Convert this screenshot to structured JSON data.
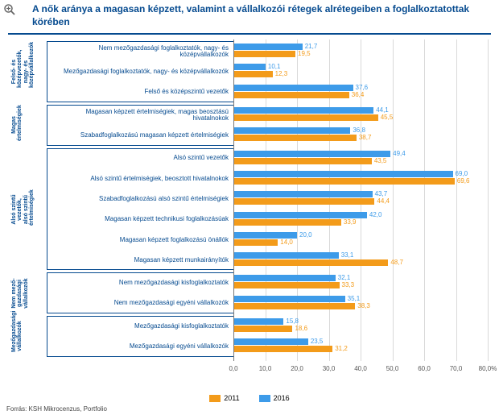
{
  "title": "A nők aránya a magasan képzett, valamint a vállalkozói rétegek alrétegeiben a foglalkoztatottak körében",
  "source": "Forrás: KSH Mikrocenzus, Portfolio",
  "chart": {
    "type": "bar",
    "xmin": 0,
    "xmax": 80,
    "xtick_step": 10,
    "xtick_suffix": ",0",
    "xlast_suffix": ",0%",
    "colors": {
      "2016": "#3d9be9",
      "2011": "#f39b1a",
      "grid": "#d9d9d9",
      "axis": "#777",
      "group_border": "#054a8f",
      "text": "#054a8f"
    },
    "legend": [
      {
        "key": "2011",
        "label": "2011"
      },
      {
        "key": "2016",
        "label": "2016"
      }
    ],
    "groups": [
      {
        "label": "Felső- és középvezetők,\nnagy- és középvállalkozók",
        "rows": [
          {
            "label": "Nem mezőgazdasági foglalkoztatók, nagy- és középvállalkozók",
            "v2016": 21.7,
            "v2011": 19.5
          },
          {
            "label": "Mezőgazdasági foglalkoztatók, nagy- és középvállalkozók",
            "v2016": 10.1,
            "v2011": 12.3
          },
          {
            "label": "Felső és középszintű vezetők",
            "v2016": 37.6,
            "v2011": 36.4
          }
        ]
      },
      {
        "label": "Magas\nértelmiségiek",
        "rows": [
          {
            "label": "Magasan képzett értelmiségiek, magas beosztású hivatalnokok",
            "v2016": 44.1,
            "v2011": 45.5
          },
          {
            "label": "Szabadfoglalkozású magasan képzett értelmiségiek",
            "v2016": 36.8,
            "v2011": 38.7
          }
        ]
      },
      {
        "label": "Alsó szintű vezetők, alsó szintű\nértelmiségiek",
        "rows": [
          {
            "label": "Alsó szintű vezetők",
            "v2016": 49.4,
            "v2011": 43.5
          },
          {
            "label": "Alsó szintű értelmiségiek, beosztott hivatalnokok",
            "v2016": 69.0,
            "v2011": 69.6
          },
          {
            "label": "Szabadfoglalkozású alsó szintű értelmiségiek",
            "v2016": 43.7,
            "v2011": 44.4
          },
          {
            "label": "Magasan képzett technikusi foglalkozásúak",
            "v2016": 42.0,
            "v2011": 33.9
          },
          {
            "label": "Magasan képzett foglalkozású önállók",
            "v2016": 20.0,
            "v2011": 14.0
          },
          {
            "label": "Magasan képzett munkairányítók",
            "v2016": 33.1,
            "v2011": 48.7
          }
        ]
      },
      {
        "label": "Nem mező-\ngazdasági\nvállalkozók",
        "rows": [
          {
            "label": "Nem mezőgazdasági kisfoglalkoztatók",
            "v2016": 32.1,
            "v2011": 33.3
          },
          {
            "label": "Nem mezőgazdasági egyéni vállalkozók",
            "v2016": 35.1,
            "v2011": 38.3
          }
        ]
      },
      {
        "label": "Mezőgazdasági\nvállalkozók",
        "rows": [
          {
            "label": "Mezőgazdasági kisfoglalkoztatók",
            "v2016": 15.8,
            "v2011": 18.6
          },
          {
            "label": "Mezőgazdasági egyéni vállalkozók",
            "v2016": 23.5,
            "v2011": 31.2
          }
        ]
      }
    ]
  }
}
